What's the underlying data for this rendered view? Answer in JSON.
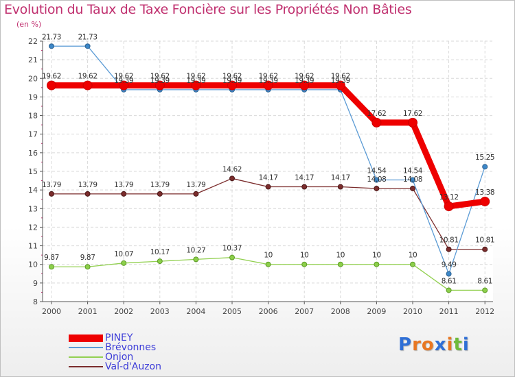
{
  "title": "Evolution du Taux de Taxe Foncière sur les Propriétés Non Bâties",
  "unit_label": "(en %)",
  "logo": {
    "letters": [
      "P",
      "r",
      "o",
      "x",
      "i",
      "t",
      "i"
    ],
    "colors": [
      "#2f6fd6",
      "#e87722",
      "#e87722",
      "#2f6fd6",
      "#e87722",
      "#6dbb3a",
      "#2f6fd6"
    ]
  },
  "chart_data": {
    "type": "line",
    "title": "Evolution du Taux de Taxe Foncière sur les Propriétés Non Bâties",
    "xlabel": "",
    "ylabel": "(en %)",
    "categories": [
      "2000",
      "2001",
      "2002",
      "2003",
      "2004",
      "2005",
      "2006",
      "2007",
      "2008",
      "2009",
      "2010",
      "2011",
      "2012"
    ],
    "ylim": [
      8,
      22
    ],
    "yticks": [
      "8",
      "9",
      "10",
      "11",
      "12",
      "13",
      "14",
      "15",
      "16",
      "17",
      "18",
      "19",
      "20",
      "21",
      "22"
    ],
    "grid": true,
    "legend_position": "bottom-left",
    "series": [
      {
        "name": "PINEY",
        "color": "#ee0000",
        "values": [
          19.62,
          19.62,
          19.62,
          19.62,
          19.62,
          19.62,
          19.62,
          19.62,
          19.62,
          17.62,
          17.62,
          13.12,
          13.38
        ],
        "labels": [
          "19.62",
          "19.62",
          "19.62",
          "19.62",
          "19.62",
          "19.62",
          "19.62",
          "19.62",
          "19.62",
          "17.62",
          "17.62",
          "13.12",
          "13.38"
        ]
      },
      {
        "name": "Brévonnes",
        "color": "#5b9bd5",
        "values": [
          21.73,
          21.73,
          19.39,
          19.39,
          19.39,
          19.39,
          19.39,
          19.39,
          19.39,
          14.54,
          14.54,
          9.49,
          15.25
        ],
        "labels": [
          "21.73",
          "21.73",
          "19.39",
          "19.39",
          "19.39",
          "19.39",
          "19.39",
          "19.39",
          "19.39",
          "14.54",
          "14.54",
          "9.49",
          "15.25"
        ]
      },
      {
        "name": "Onjon",
        "color": "#92d050",
        "values": [
          9.87,
          9.87,
          10.07,
          10.17,
          10.27,
          10.37,
          10,
          10,
          10,
          10,
          10,
          8.61,
          8.61
        ],
        "labels": [
          "9.87",
          "9.87",
          "10.07",
          "10.17",
          "10.27",
          "10.37",
          "10",
          "10",
          "10",
          "10",
          "10",
          "8.61",
          "8.61"
        ]
      },
      {
        "name": "Val-d'Auzon",
        "color": "#7b2c2c",
        "values": [
          13.79,
          13.79,
          13.79,
          13.79,
          13.79,
          14.62,
          14.17,
          14.17,
          14.17,
          14.08,
          14.08,
          10.81,
          10.81
        ],
        "labels": [
          "13.79",
          "13.79",
          "13.79",
          "13.79",
          "13.79",
          "14.62",
          "14.17",
          "14.17",
          "14.17",
          "14.08",
          "14.08",
          "10.81",
          "10.81"
        ]
      }
    ]
  }
}
